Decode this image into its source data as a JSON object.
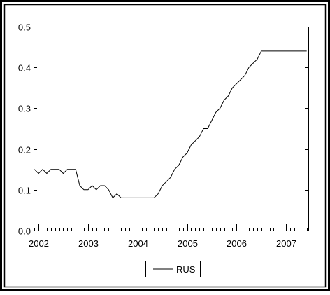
{
  "chart_data": {
    "type": "line",
    "title": "",
    "xlabel": "",
    "ylabel": "",
    "xlim": [
      2001.9,
      2007.45
    ],
    "ylim": [
      0.0,
      0.5
    ],
    "x_ticks": [
      "2002",
      "2003",
      "2004",
      "2005",
      "2006",
      "2007"
    ],
    "y_ticks": [
      "0.0",
      "0.1",
      "0.2",
      "0.3",
      "0.4",
      "0.5"
    ],
    "y_tick_values": [
      0.0,
      0.1,
      0.2,
      0.3,
      0.4,
      0.5
    ],
    "x_tick_values": [
      2002,
      2003,
      2004,
      2005,
      2006,
      2007
    ],
    "grid": false,
    "legend_position": "bottom-center",
    "series": [
      {
        "name": "RUS",
        "color": "#000000",
        "x": [
          2001.917,
          2002.0,
          2002.083,
          2002.167,
          2002.25,
          2002.333,
          2002.417,
          2002.5,
          2002.583,
          2002.667,
          2002.75,
          2002.833,
          2002.917,
          2003.0,
          2003.083,
          2003.167,
          2003.25,
          2003.333,
          2003.417,
          2003.5,
          2003.583,
          2003.667,
          2003.75,
          2003.833,
          2003.917,
          2004.0,
          2004.083,
          2004.167,
          2004.25,
          2004.333,
          2004.417,
          2004.5,
          2004.583,
          2004.667,
          2004.75,
          2004.833,
          2004.917,
          2005.0,
          2005.083,
          2005.167,
          2005.25,
          2005.333,
          2005.417,
          2005.5,
          2005.583,
          2005.667,
          2005.75,
          2005.833,
          2005.917,
          2006.0,
          2006.083,
          2006.167,
          2006.25,
          2006.333,
          2006.417,
          2006.5,
          2006.583,
          2006.667,
          2006.75,
          2006.833,
          2006.917,
          2007.0,
          2007.083,
          2007.167,
          2007.25,
          2007.333,
          2007.417
        ],
        "values": [
          0.15,
          0.14,
          0.15,
          0.14,
          0.15,
          0.15,
          0.15,
          0.14,
          0.15,
          0.15,
          0.15,
          0.11,
          0.1,
          0.1,
          0.11,
          0.1,
          0.11,
          0.11,
          0.1,
          0.08,
          0.09,
          0.08,
          0.08,
          0.08,
          0.08,
          0.08,
          0.08,
          0.08,
          0.08,
          0.08,
          0.09,
          0.11,
          0.12,
          0.13,
          0.15,
          0.16,
          0.18,
          0.19,
          0.21,
          0.22,
          0.23,
          0.25,
          0.25,
          0.27,
          0.29,
          0.3,
          0.32,
          0.33,
          0.35,
          0.36,
          0.37,
          0.38,
          0.4,
          0.41,
          0.42,
          0.44,
          0.44,
          0.44,
          0.44,
          0.44,
          0.44,
          0.44,
          0.44,
          0.44,
          0.44,
          0.44,
          0.44
        ]
      }
    ]
  }
}
